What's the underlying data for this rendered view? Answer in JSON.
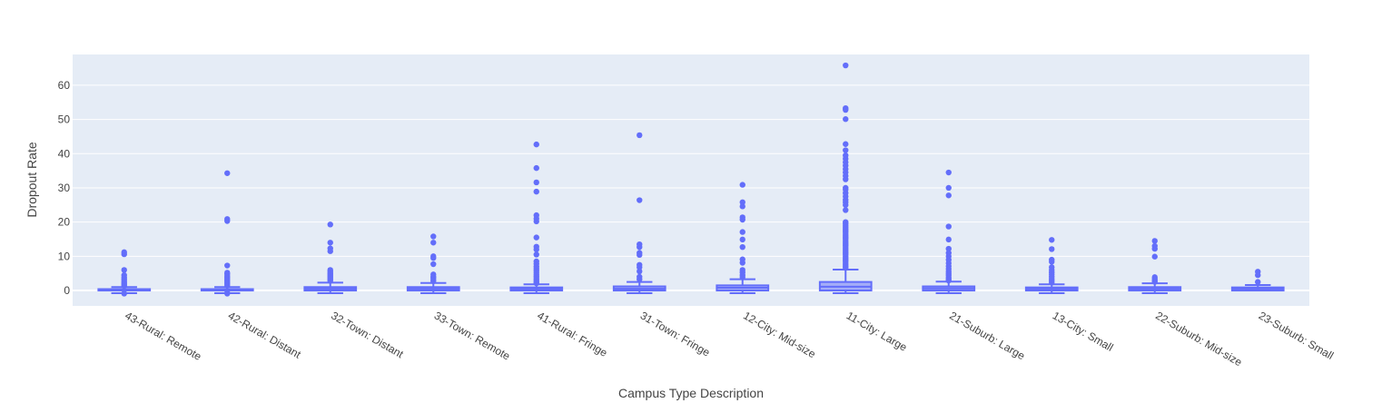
{
  "colors": {
    "plot_bg": "#E5ECF6",
    "grid": "#FFFFFF",
    "series": "#636EFA",
    "box_fill": "rgba(99,110,250,0.5)"
  },
  "chart_data": {
    "type": "box",
    "xlabel": "Campus Type Description",
    "ylabel": "Dropout Rate",
    "ylim": [
      -4.5,
      69
    ],
    "yticks": [
      0,
      10,
      20,
      30,
      40,
      50,
      60
    ],
    "grid": true,
    "categories": [
      "43-Rural: Remote",
      "42-Rural: Distant",
      "32-Town: Distant",
      "33-Town: Remote",
      "41-Rural: Fringe",
      "31-Town: Fringe",
      "12-City: Mid-size",
      "11-City: Large",
      "21-Suburb: Large",
      "13-City: Small",
      "22-Suburb: Mid-size",
      "23-Suburb: Small"
    ],
    "boxes": [
      {
        "q1": 0,
        "median": 0,
        "q3": 0.4,
        "lower": -0.8,
        "upper": 1.0,
        "outliers": [
          11.2,
          10.6,
          6.0,
          4.5,
          3.8,
          3.2,
          2.7,
          2.2,
          1.8,
          1.4,
          -0.9
        ]
      },
      {
        "q1": 0,
        "median": 0,
        "q3": 0.4,
        "lower": -0.8,
        "upper": 1.0,
        "outliers": [
          34.3,
          20.9,
          20.3,
          7.3,
          5.2,
          4.8,
          4.3,
          3.9,
          3.5,
          3.1,
          2.7,
          2.3,
          1.9,
          1.5,
          -0.7,
          -0.9
        ]
      },
      {
        "q1": 0,
        "median": 0.5,
        "q3": 1.0,
        "lower": -0.8,
        "upper": 2.3,
        "outliers": [
          19.3,
          14.0,
          12.3,
          11.5,
          6.0,
          5.6,
          5.2,
          4.8,
          4.4,
          4.0,
          3.6,
          3.2,
          2.8
        ]
      },
      {
        "q1": 0,
        "median": 0.5,
        "q3": 1.0,
        "lower": -0.8,
        "upper": 2.2,
        "outliers": [
          15.8,
          14.0,
          10.0,
          9.5,
          7.7,
          4.7,
          4.0,
          3.6,
          3.1,
          2.7
        ]
      },
      {
        "q1": 0,
        "median": 0.4,
        "q3": 0.9,
        "lower": -0.8,
        "upper": 1.8,
        "outliers": [
          42.7,
          35.8,
          31.6,
          28.9,
          22.0,
          21.0,
          20.2,
          15.5,
          12.8,
          12.0,
          10.5,
          8.5,
          7.8,
          7.0,
          6.4,
          5.8,
          5.2,
          4.6,
          4.0,
          3.5,
          3.0,
          2.5,
          2.1
        ]
      },
      {
        "q1": 0,
        "median": 0.5,
        "q3": 1.2,
        "lower": -0.8,
        "upper": 2.5,
        "outliers": [
          45.4,
          26.4,
          13.5,
          12.7,
          11.0,
          10.4,
          7.5,
          6.8,
          5.6,
          4.0,
          3.3
        ]
      },
      {
        "q1": 0,
        "median": 0.8,
        "q3": 1.5,
        "lower": -0.8,
        "upper": 3.3,
        "outliers": [
          30.9,
          25.8,
          24.6,
          21.4,
          20.7,
          17.1,
          14.9,
          12.7,
          9.1,
          8.1,
          6.0,
          5.3,
          4.5,
          3.9
        ]
      },
      {
        "q1": 0,
        "median": 1.1,
        "q3": 2.5,
        "lower": -0.8,
        "upper": 6.1,
        "outliers": [
          65.8,
          53.3,
          52.8,
          50.1,
          42.8,
          41.0,
          39.5,
          38.5,
          37.5,
          36.5,
          35.5,
          34.5,
          33.5,
          32.5,
          30.0,
          29.5,
          28.5,
          27.5,
          26.5,
          25.8,
          25.0,
          23.5,
          20.0,
          19.5,
          19.0,
          18.5,
          18.0,
          17.5,
          17.0,
          16.5,
          16.0,
          15.5,
          15.0,
          14.5,
          14.0,
          13.5,
          13.0,
          12.5,
          12.0,
          11.5,
          11.0,
          10.5,
          10.0,
          9.5,
          9.0,
          8.5,
          8.0,
          7.5,
          7.0,
          6.6
        ]
      },
      {
        "q1": 0,
        "median": 0.6,
        "q3": 1.2,
        "lower": -0.8,
        "upper": 2.6,
        "outliers": [
          34.5,
          30.0,
          27.8,
          18.7,
          14.9,
          12.2,
          11.0,
          10.0,
          9.0,
          8.0,
          7.1,
          6.3,
          5.6,
          5.0,
          4.4,
          3.8,
          3.3,
          2.9
        ]
      },
      {
        "q1": 0,
        "median": 0.4,
        "q3": 0.9,
        "lower": -0.8,
        "upper": 1.8,
        "outliers": [
          14.8,
          12.1,
          9.0,
          8.4,
          6.8,
          6.0,
          5.3,
          4.7,
          4.0,
          3.4,
          2.8,
          2.3
        ]
      },
      {
        "q1": 0,
        "median": 0.5,
        "q3": 1.0,
        "lower": -0.8,
        "upper": 2.1,
        "outliers": [
          14.5,
          13.0,
          12.2,
          9.9,
          3.9,
          3.4,
          2.9,
          2.5
        ]
      },
      {
        "q1": 0,
        "median": 0.5,
        "q3": 0.9,
        "lower": 0,
        "upper": 1.6,
        "outliers": [
          5.5,
          4.5,
          2.5
        ]
      }
    ]
  }
}
